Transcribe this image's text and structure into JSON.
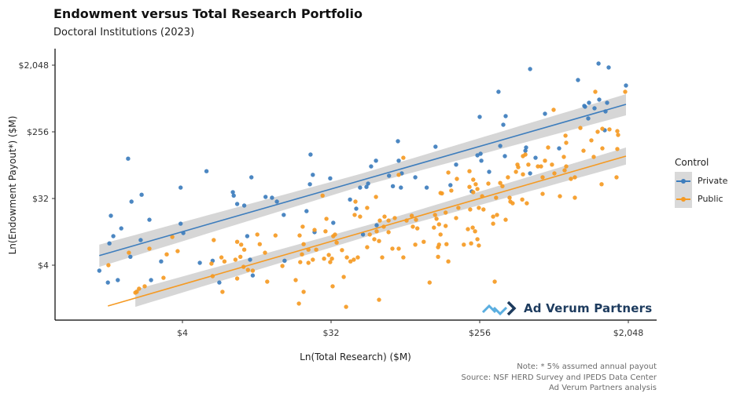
{
  "chart_data": {
    "type": "scatter",
    "title": "Endowment versus Total Research Portfolio",
    "subtitle": "Doctoral Institutions (2023)",
    "xlabel": "Ln(Total Research) ($M)",
    "ylabel": "Ln(Endowment Payout*) ($M)",
    "x_scale": "log2",
    "y_scale": "log2",
    "xlim": [
      0.67,
      3040
    ],
    "ylim": [
      0.72,
      3400
    ],
    "x_ticks": [
      {
        "value": 4,
        "label": "$4"
      },
      {
        "value": 32,
        "label": "$32"
      },
      {
        "value": 256,
        "label": "$256"
      },
      {
        "value": 2048,
        "label": "$2,048"
      }
    ],
    "y_ticks": [
      {
        "value": 4,
        "label": "$4"
      },
      {
        "value": 32,
        "label": "$32"
      },
      {
        "value": 256,
        "label": "$256"
      },
      {
        "value": 2048,
        "label": "$2,048"
      }
    ],
    "grid": false,
    "legend": {
      "title": "Control",
      "position": "right"
    },
    "series": [
      {
        "name": "Private",
        "color": "#3d7dbd",
        "points": [
          [
            1.25,
            3.37
          ],
          [
            1.41,
            2.33
          ],
          [
            1.62,
            2.51
          ],
          [
            1.44,
            7.9
          ],
          [
            1.52,
            9.9
          ],
          [
            1.47,
            18.7
          ],
          [
            1.7,
            12.6
          ],
          [
            1.87,
            111
          ],
          [
            1.96,
            29
          ],
          [
            2.26,
            36
          ],
          [
            2.52,
            16.5
          ],
          [
            2.23,
            8.75
          ],
          [
            1.93,
            5.2
          ],
          [
            2.58,
            2.51
          ],
          [
            2.97,
            4.5
          ],
          [
            3.9,
            45
          ],
          [
            3.9,
            14.6
          ],
          [
            4.05,
            10.9
          ],
          [
            5.6,
            75
          ],
          [
            5.1,
            4.3
          ],
          [
            6.1,
            4.6
          ],
          [
            6.7,
            2.33
          ],
          [
            8.1,
            39
          ],
          [
            8.2,
            35
          ],
          [
            8.6,
            27
          ],
          [
            9.5,
            25.7
          ],
          [
            10.5,
            62
          ],
          [
            9.9,
            9.9
          ],
          [
            10.3,
            4.75
          ],
          [
            10.7,
            2.9
          ],
          [
            12.8,
            33.6
          ],
          [
            14.0,
            32.8
          ],
          [
            15.0,
            29
          ],
          [
            16.5,
            19.2
          ],
          [
            16.7,
            4.6
          ],
          [
            24,
            126
          ],
          [
            24.8,
            67
          ],
          [
            23.8,
            50
          ],
          [
            22.7,
            21.6
          ],
          [
            25.4,
            11.2
          ],
          [
            31.6,
            60
          ],
          [
            33,
            15
          ],
          [
            41.7,
            31
          ],
          [
            45.5,
            23.3
          ],
          [
            56,
            87
          ],
          [
            60,
            104
          ],
          [
            48,
            45
          ],
          [
            52.5,
            46
          ],
          [
            53.7,
            51
          ],
          [
            50,
            10.4
          ],
          [
            60.6,
            13.9
          ],
          [
            72,
            65
          ],
          [
            81.5,
            191
          ],
          [
            82.4,
            104
          ],
          [
            86,
            70
          ],
          [
            76,
            47
          ],
          [
            85,
            45
          ],
          [
            104,
            62
          ],
          [
            122,
            45
          ],
          [
            138,
            161
          ],
          [
            184,
            92
          ],
          [
            170,
            48.5
          ],
          [
            229,
            40
          ],
          [
            248,
            123
          ],
          [
            259,
            129
          ],
          [
            262,
            104
          ],
          [
            292,
            73.5
          ],
          [
            256,
            408
          ],
          [
            333,
            892
          ],
          [
            356,
            319
          ],
          [
            368,
            418
          ],
          [
            341,
            165
          ],
          [
            364,
            120
          ],
          [
            490,
            157
          ],
          [
            485,
            142
          ],
          [
            559,
            114
          ],
          [
            518,
            70
          ],
          [
            518,
            1814
          ],
          [
            638,
            450
          ],
          [
            778,
            153
          ],
          [
            1013,
            1287
          ],
          [
            1106,
            575
          ],
          [
            1181,
            633
          ],
          [
            1276,
            534
          ],
          [
            1363,
            698
          ],
          [
            1168,
            388
          ],
          [
            1349,
            2153
          ],
          [
            1556,
            1904
          ],
          [
            1489,
            484
          ],
          [
            1521,
            633
          ],
          [
            1473,
            269
          ],
          [
            1981,
            1085
          ],
          [
            1118,
            560
          ]
        ],
        "fit": {
          "line": [
            [
              1.25,
              5.4
            ],
            [
              1981,
              603
            ]
          ],
          "ci": [
            {
              "x": 1.25,
              "lower": 3.8,
              "upper": 7.6
            },
            {
              "x": 48,
              "lower": 46.4,
              "upper": 68.6
            },
            {
              "x": 1981,
              "lower": 428,
              "upper": 829
            }
          ]
        }
      },
      {
        "name": "Public",
        "color": "#f59a23",
        "points": [
          [
            1.42,
            4
          ],
          [
            1.89,
            5.9
          ],
          [
            2.07,
            1.7
          ],
          [
            2.11,
            1.74
          ],
          [
            2.18,
            1.92
          ],
          [
            2.36,
            2.07
          ],
          [
            2.52,
            6.7
          ],
          [
            3.07,
            2.7
          ],
          [
            3.21,
            5.6
          ],
          [
            3.47,
            9.65
          ],
          [
            3.74,
            6.2
          ],
          [
            6.0,
            4.2
          ],
          [
            6.1,
            2.84
          ],
          [
            6.2,
            8.75
          ],
          [
            6.9,
            5.1
          ],
          [
            7.2,
            4.5
          ],
          [
            7.0,
            1.74
          ],
          [
            8.4,
            4.75
          ],
          [
            8.6,
            2.64
          ],
          [
            8.6,
            8.3
          ],
          [
            9.0,
            5.2
          ],
          [
            9.1,
            7.6
          ],
          [
            9.5,
            6.5
          ],
          [
            9.4,
            3.8
          ],
          [
            10.0,
            3.45
          ],
          [
            10.7,
            3.37
          ],
          [
            11.4,
            10.4
          ],
          [
            11.8,
            7.7
          ],
          [
            12.7,
            5.9
          ],
          [
            13.1,
            2.39
          ],
          [
            14.7,
            10.1
          ],
          [
            16.2,
            3.9
          ],
          [
            19.5,
            2.51
          ],
          [
            20.4,
            1.21
          ],
          [
            21.8,
            1.74
          ],
          [
            20.6,
            10.1
          ],
          [
            21.5,
            13.3
          ],
          [
            20.8,
            4.4
          ],
          [
            21.3,
            5.6
          ],
          [
            21.8,
            7.7
          ],
          [
            23.3,
            6.5
          ],
          [
            23.3,
            4.3
          ],
          [
            24.8,
            4.75
          ],
          [
            25.4,
            12.0
          ],
          [
            26,
            6.5
          ],
          [
            28.4,
            35
          ],
          [
            29,
            4.9
          ],
          [
            29.6,
            11.5
          ],
          [
            30,
            17
          ],
          [
            31,
            5.5
          ],
          [
            31.6,
            4.4
          ],
          [
            32.4,
            4.9
          ],
          [
            32.7,
            2.07
          ],
          [
            33,
            9.9
          ],
          [
            33.8,
            10.4
          ],
          [
            34.6,
            8.1
          ],
          [
            37.3,
            6.4
          ],
          [
            38.2,
            2.77
          ],
          [
            39.5,
            1.09
          ],
          [
            39.9,
            5.1
          ],
          [
            42,
            4.5
          ],
          [
            45,
            29
          ],
          [
            44.5,
            19.2
          ],
          [
            48,
            18.2
          ],
          [
            53,
            23.9
          ],
          [
            60,
            33.6
          ],
          [
            88,
            114
          ],
          [
            82.4,
            67
          ],
          [
            67.6,
            18.2
          ],
          [
            63.3,
            16.1
          ],
          [
            71.5,
            16.1
          ],
          [
            78,
            17.4
          ],
          [
            66.9,
            13.3
          ],
          [
            60.6,
            11.5
          ],
          [
            55,
            10.4
          ],
          [
            71.5,
            11.2
          ],
          [
            58.6,
            9.0
          ],
          [
            62.6,
            8.5
          ],
          [
            53,
            7.0
          ],
          [
            75.5,
            6.7
          ],
          [
            82.4,
            6.7
          ],
          [
            65.4,
            5.1
          ],
          [
            88,
            5.1
          ],
          [
            46.5,
            5.1
          ],
          [
            44,
            4.75
          ],
          [
            62.6,
            1.36
          ],
          [
            92,
            16.1
          ],
          [
            99,
            18.7
          ],
          [
            105,
            16.5
          ],
          [
            100.5,
            13.3
          ],
          [
            107,
            12.6
          ],
          [
            117,
            8.3
          ],
          [
            104,
            7.6
          ],
          [
            137,
            19.2
          ],
          [
            140,
            17
          ],
          [
            135,
            12.9
          ],
          [
            145,
            14.3
          ],
          [
            148,
            10.4
          ],
          [
            159,
            20.6
          ],
          [
            159,
            13.6
          ],
          [
            143,
            7.0
          ],
          [
            145,
            7.6
          ],
          [
            161,
            7.7
          ],
          [
            143,
            5.2
          ],
          [
            165,
            4.5
          ],
          [
            127,
            2.33
          ],
          [
            148,
            38
          ],
          [
            151,
            37.5
          ],
          [
            165,
            72
          ],
          [
            172,
            41
          ],
          [
            186,
            59
          ],
          [
            190,
            23.9
          ],
          [
            184,
            17.4
          ],
          [
            222,
            75
          ],
          [
            234,
            57.6
          ],
          [
            242,
            50
          ],
          [
            248,
            43
          ],
          [
            222,
            46
          ],
          [
            234,
            39
          ],
          [
            265,
            34.4
          ],
          [
            253,
            23.9
          ],
          [
            224,
            22.7
          ],
          [
            270,
            22.7
          ],
          [
            217,
            12.3
          ],
          [
            232,
            12.9
          ],
          [
            240,
            11.5
          ],
          [
            248,
            9.0
          ],
          [
            227,
            7.9
          ],
          [
            253,
            7.4
          ],
          [
            205,
            7.6
          ],
          [
            289,
            51
          ],
          [
            341,
            52
          ],
          [
            352,
            47
          ],
          [
            322,
            32.8
          ],
          [
            309,
            18.2
          ],
          [
            326,
            19.2
          ],
          [
            309,
            14.6
          ],
          [
            368,
            16.5
          ],
          [
            316,
            2.39
          ],
          [
            380,
            62
          ],
          [
            425,
            73.5
          ],
          [
            439,
            85
          ],
          [
            434,
            92
          ],
          [
            469,
            68
          ],
          [
            469,
            120
          ],
          [
            485,
            126
          ],
          [
            506,
            92
          ],
          [
            578,
            87
          ],
          [
            604,
            87
          ],
          [
            638,
            104
          ],
          [
            704,
            92
          ],
          [
            617,
            62
          ],
          [
            728,
            70
          ],
          [
            840,
            77
          ],
          [
            859,
            87
          ],
          [
            831,
            117
          ],
          [
            667,
            157
          ],
          [
            720,
            508
          ],
          [
            850,
            227
          ],
          [
            859,
            182
          ],
          [
            1094,
            142
          ],
          [
            1221,
            196
          ],
          [
            1262,
            117
          ],
          [
            1333,
            256
          ],
          [
            1424,
            282
          ],
          [
            1573,
            276
          ],
          [
            1424,
            153
          ],
          [
            1290,
            892
          ],
          [
            1756,
            262
          ],
          [
            1776,
            232
          ],
          [
            1756,
            150
          ],
          [
            1960,
            892
          ],
          [
            1047,
            289
          ],
          [
            389,
            32.8
          ],
          [
            393,
            29
          ],
          [
            406,
            27.6
          ],
          [
            464,
            31
          ],
          [
            495,
            27.6
          ],
          [
            617,
            37
          ],
          [
            786,
            34.4
          ],
          [
            969,
            32.8
          ],
          [
            917,
            59
          ],
          [
            969,
            62
          ],
          [
            1409,
            50
          ],
          [
            1737,
            62
          ]
        ],
        "fit": {
          "line": [
            [
              1.41,
              1.12
            ],
            [
              1981,
              120
            ]
          ],
          "ci": [
            {
              "x": 2.07,
              "lower": 1.09,
              "upper": 1.87
            },
            {
              "x": 61.3,
              "lower": 10.8,
              "upper": 15.2
            },
            {
              "x": 1981,
              "lower": 92,
              "upper": 157
            }
          ]
        }
      }
    ]
  },
  "notes": {
    "line1": "Note: * 5% assumed annual payout",
    "line2": "Source: NSF HERD Survey and IPEDS Data Center",
    "line3": "Ad Verum Partners analysis"
  },
  "logo": {
    "text": "Ad Verum Partners",
    "colors": {
      "chevron_light": "#5aaee0",
      "chevron_dark": "#1d3b5e"
    }
  }
}
